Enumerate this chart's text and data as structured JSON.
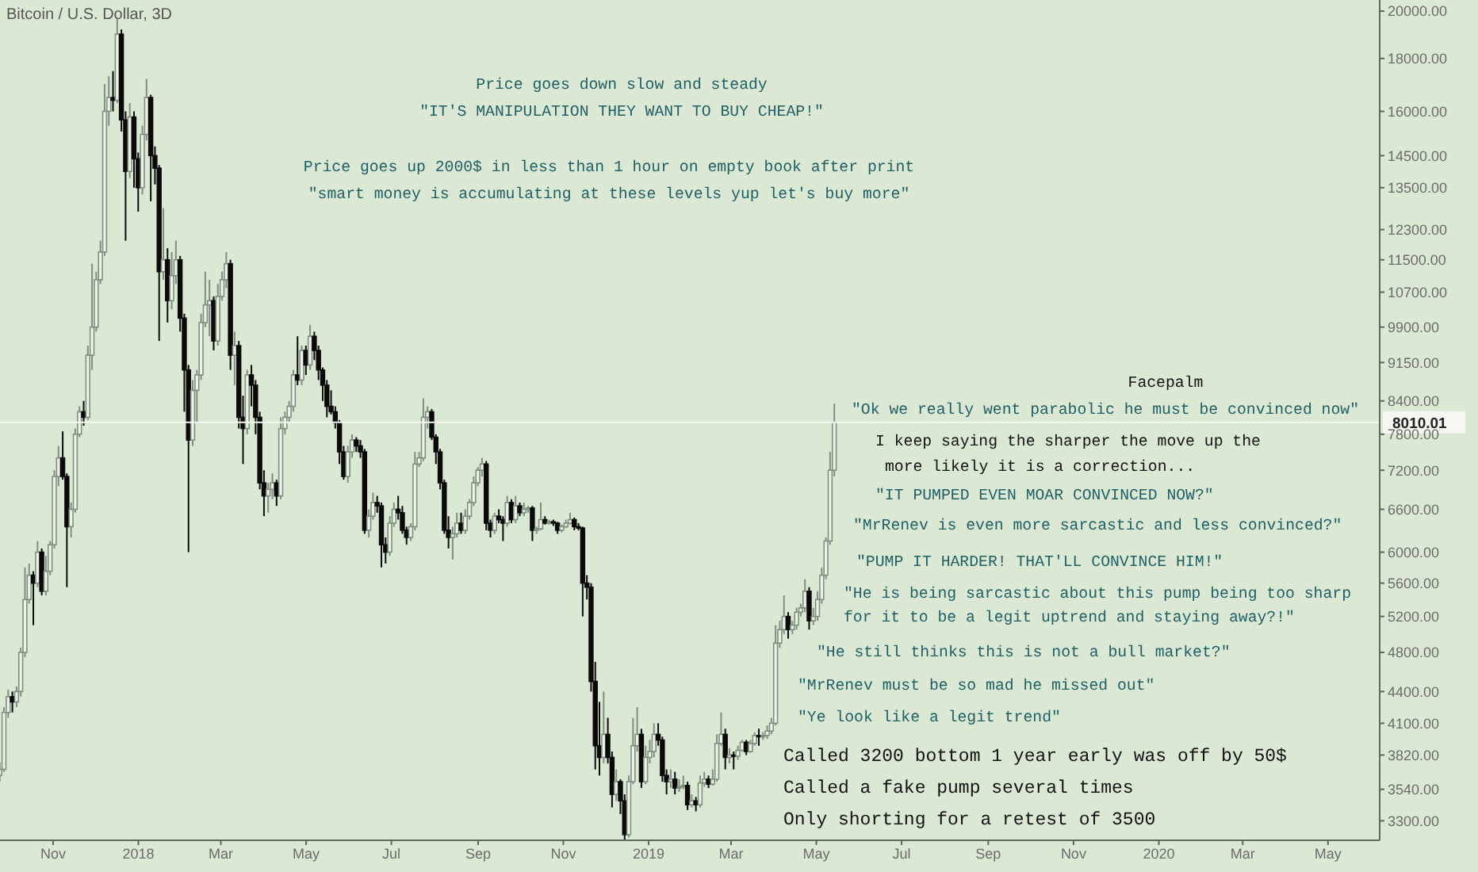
{
  "chart_data": {
    "type": "candlestick",
    "title": "Bitcoin / U.S. Dollar, 3D",
    "annotations": [
      "Price goes down slow and steady",
      "\"IT'S MANIPULATION THEY WANT TO BUY CHEAP!\"",
      "Price goes up 2000$ in less than 1 hour on empty book after print",
      "\"smart money is accumulating at these levels yup let's buy more\"",
      "Facepalm",
      "\"Ok we really went parabolic he must be convinced now\"",
      "I keep saying the sharper the move up the",
      "more likely it is a correction...",
      "\"IT PUMPED EVEN MOAR CONVINCED NOW?\"",
      "\"MrRenev is even more sarcastic and less convinced?\"",
      "\"PUMP IT HARDER! THAT'LL CONVINCE HIM!\"",
      "\"He is being sarcastic about this pump being too sharp",
      "for it to be a legit uptrend and staying away?!\"",
      "\"He still thinks this is not a bull market?\"",
      "\"MrRenev must be so mad he missed out\"",
      "\"Ye look like a legit trend\"",
      "Called 3200 bottom 1 year early was off by 50$",
      "Called a fake pump several times",
      "Only shorting for a retest of 3500"
    ],
    "x": [
      "2017-09-24",
      "2017-09-27",
      "2017-09-30",
      "2017-10-03",
      "2017-10-06",
      "2017-10-09",
      "2017-10-12",
      "2017-10-15",
      "2017-10-18",
      "2017-10-21",
      "2017-10-24",
      "2017-10-27",
      "2017-10-30",
      "2017-11-02",
      "2017-11-05",
      "2017-11-08",
      "2017-11-11",
      "2017-11-14",
      "2017-11-17",
      "2017-11-20",
      "2017-11-23",
      "2017-11-26",
      "2017-11-29",
      "2017-12-02",
      "2017-12-05",
      "2017-12-08",
      "2017-12-11",
      "2017-12-14",
      "2017-12-17",
      "2017-12-20",
      "2017-12-23",
      "2017-12-26",
      "2017-12-29",
      "2018-01-01",
      "2018-01-04",
      "2018-01-07",
      "2018-01-10",
      "2018-01-13",
      "2018-01-16",
      "2018-01-19",
      "2018-01-22",
      "2018-01-25",
      "2018-01-28",
      "2018-01-31",
      "2018-02-03",
      "2018-02-06",
      "2018-02-09",
      "2018-02-12",
      "2018-02-15",
      "2018-02-18",
      "2018-02-21",
      "2018-02-24",
      "2018-02-27",
      "2018-03-02",
      "2018-03-05",
      "2018-03-08",
      "2018-03-11",
      "2018-03-14",
      "2018-03-17",
      "2018-03-20",
      "2018-03-23",
      "2018-03-26",
      "2018-03-29",
      "2018-04-01",
      "2018-04-04",
      "2018-04-07",
      "2018-04-10",
      "2018-04-13",
      "2018-04-16",
      "2018-04-19",
      "2018-04-22",
      "2018-04-25",
      "2018-04-28",
      "2018-05-01",
      "2018-05-04",
      "2018-05-07",
      "2018-05-10",
      "2018-05-13",
      "2018-05-16",
      "2018-05-19",
      "2018-05-22",
      "2018-05-25",
      "2018-05-28",
      "2018-05-31",
      "2018-06-03",
      "2018-06-06",
      "2018-06-09",
      "2018-06-12",
      "2018-06-15",
      "2018-06-18",
      "2018-06-21",
      "2018-06-24",
      "2018-06-27",
      "2018-06-30",
      "2018-07-03",
      "2018-07-06",
      "2018-07-09",
      "2018-07-12",
      "2018-07-15",
      "2018-07-18",
      "2018-07-21",
      "2018-07-24",
      "2018-07-27",
      "2018-07-30",
      "2018-08-02",
      "2018-08-05",
      "2018-08-08",
      "2018-08-11",
      "2018-08-14",
      "2018-08-17",
      "2018-08-20",
      "2018-08-23",
      "2018-08-26",
      "2018-08-29",
      "2018-09-01",
      "2018-09-04",
      "2018-09-07",
      "2018-09-10",
      "2018-09-13",
      "2018-09-16",
      "2018-09-19",
      "2018-09-22",
      "2018-09-25",
      "2018-09-28",
      "2018-10-01",
      "2018-10-04",
      "2018-10-07",
      "2018-10-10",
      "2018-10-13",
      "2018-10-16",
      "2018-10-19",
      "2018-10-22",
      "2018-10-25",
      "2018-10-28",
      "2018-10-31",
      "2018-11-03",
      "2018-11-06",
      "2018-11-09",
      "2018-11-12",
      "2018-11-15",
      "2018-11-18",
      "2018-11-21",
      "2018-11-24",
      "2018-11-27",
      "2018-11-30",
      "2018-12-03",
      "2018-12-06",
      "2018-12-09",
      "2018-12-12",
      "2018-12-15",
      "2018-12-18",
      "2018-12-21",
      "2018-12-24",
      "2018-12-27",
      "2018-12-30",
      "2019-01-02",
      "2019-01-05",
      "2019-01-08",
      "2019-01-11",
      "2019-01-14",
      "2019-01-17",
      "2019-01-20",
      "2019-01-23",
      "2019-01-26",
      "2019-01-29",
      "2019-02-01",
      "2019-02-04",
      "2019-02-07",
      "2019-02-10",
      "2019-02-13",
      "2019-02-16",
      "2019-02-19",
      "2019-02-22",
      "2019-02-25",
      "2019-02-28",
      "2019-03-03",
      "2019-03-06",
      "2019-03-09",
      "2019-03-12",
      "2019-03-15",
      "2019-03-18",
      "2019-03-21",
      "2019-03-24",
      "2019-03-27",
      "2019-03-30",
      "2019-04-02",
      "2019-04-05",
      "2019-04-08",
      "2019-04-11",
      "2019-04-14",
      "2019-04-17",
      "2019-04-20",
      "2019-04-23",
      "2019-04-26",
      "2019-04-29",
      "2019-05-02",
      "2019-05-05",
      "2019-05-08",
      "2019-05-11",
      "2019-05-14"
    ],
    "ohlc": [
      [
        3650,
        3760,
        3600,
        3700
      ],
      [
        3700,
        4250,
        3680,
        4200
      ],
      [
        4200,
        4420,
        4150,
        4350
      ],
      [
        4350,
        4400,
        4200,
        4300
      ],
      [
        4300,
        4450,
        4250,
        4400
      ],
      [
        4400,
        4850,
        4350,
        4800
      ],
      [
        4800,
        5800,
        4750,
        5400
      ],
      [
        5400,
        5850,
        5350,
        5700
      ],
      [
        5700,
        5750,
        5100,
        5600
      ],
      [
        5600,
        6150,
        5550,
        6000
      ],
      [
        6000,
        6050,
        5450,
        5500
      ],
      [
        5500,
        5950,
        5450,
        5750
      ],
      [
        5750,
        6150,
        5700,
        6100
      ],
      [
        6100,
        7200,
        6050,
        7100
      ],
      [
        7100,
        7600,
        6950,
        7400
      ],
      [
        7400,
        7850,
        7050,
        7100
      ],
      [
        7100,
        7150,
        5550,
        6350
      ],
      [
        6350,
        6700,
        6200,
        6600
      ],
      [
        6600,
        7900,
        6550,
        7800
      ],
      [
        7800,
        8300,
        7750,
        8200
      ],
      [
        8200,
        8400,
        7950,
        8100
      ],
      [
        8100,
        9500,
        8050,
        9300
      ],
      [
        9300,
        11400,
        9000,
        9900
      ],
      [
        9900,
        11200,
        9800,
        11000
      ],
      [
        11000,
        12000,
        10900,
        11700
      ],
      [
        11700,
        17000,
        11600,
        16000
      ],
      [
        16000,
        17300,
        15500,
        16500
      ],
      [
        16500,
        17500,
        16000,
        16400
      ],
      [
        16400,
        19700,
        16300,
        19000
      ],
      [
        19000,
        19200,
        15300,
        15700
      ],
      [
        15700,
        16000,
        12000,
        14000
      ],
      [
        14000,
        16300,
        13800,
        15800
      ],
      [
        15800,
        16000,
        13500,
        14400
      ],
      [
        14400,
        14600,
        12800,
        13500
      ],
      [
        13500,
        15500,
        13300,
        15200
      ],
      [
        15200,
        17200,
        15000,
        16500
      ],
      [
        16500,
        16600,
        13100,
        14500
      ],
      [
        14500,
        14800,
        13600,
        14100
      ],
      [
        14100,
        14200,
        9600,
        11200
      ],
      [
        11200,
        12900,
        11000,
        11500
      ],
      [
        11500,
        11800,
        10000,
        10500
      ],
      [
        10500,
        11700,
        10300,
        11100
      ],
      [
        11100,
        12000,
        10900,
        11500
      ],
      [
        11500,
        11600,
        9800,
        10100
      ],
      [
        10100,
        10200,
        8200,
        9000
      ],
      [
        9000,
        9100,
        6000,
        7700
      ],
      [
        7700,
        8800,
        7600,
        8600
      ],
      [
        8600,
        9000,
        8000,
        8900
      ],
      [
        8900,
        10200,
        8800,
        10000
      ],
      [
        10000,
        11200,
        9900,
        10400
      ],
      [
        10400,
        11000,
        9700,
        10500
      ],
      [
        10500,
        10600,
        9400,
        9600
      ],
      [
        9600,
        10900,
        9500,
        10600
      ],
      [
        10600,
        11200,
        10500,
        11000
      ],
      [
        11000,
        11700,
        10800,
        11400
      ],
      [
        11400,
        11500,
        9000,
        9300
      ],
      [
        9300,
        9800,
        8700,
        9500
      ],
      [
        9500,
        9600,
        7900,
        8100
      ],
      [
        8100,
        8500,
        7300,
        7900
      ],
      [
        7900,
        9000,
        7800,
        8900
      ],
      [
        8900,
        9100,
        8300,
        8700
      ],
      [
        8700,
        8800,
        7800,
        8100
      ],
      [
        8100,
        8200,
        6900,
        7000
      ],
      [
        7000,
        7200,
        6500,
        6800
      ],
      [
        6800,
        7000,
        6550,
        6900
      ],
      [
        6900,
        7150,
        6750,
        7000
      ],
      [
        7000,
        7050,
        6650,
        6800
      ],
      [
        6800,
        8100,
        6750,
        7900
      ],
      [
        7900,
        8200,
        7800,
        8100
      ],
      [
        8100,
        8400,
        8000,
        8300
      ],
      [
        8300,
        9000,
        8200,
        8900
      ],
      [
        8900,
        9700,
        8700,
        8800
      ],
      [
        8800,
        9500,
        8700,
        9400
      ],
      [
        9400,
        9500,
        8900,
        9100
      ],
      [
        9100,
        9950,
        9000,
        9700
      ],
      [
        9700,
        9800,
        9200,
        9400
      ],
      [
        9400,
        9500,
        8800,
        9000
      ],
      [
        9000,
        9050,
        8400,
        8700
      ],
      [
        8700,
        8800,
        8100,
        8300
      ],
      [
        8300,
        8600,
        8150,
        8200
      ],
      [
        8200,
        8300,
        7900,
        8000
      ],
      [
        8000,
        8050,
        7300,
        7500
      ],
      [
        7500,
        7600,
        7050,
        7100
      ],
      [
        7100,
        7600,
        7000,
        7500
      ],
      [
        7500,
        7800,
        7400,
        7700
      ],
      [
        7700,
        7750,
        7500,
        7600
      ],
      [
        7600,
        7700,
        7400,
        7500
      ],
      [
        7500,
        7550,
        6250,
        6300
      ],
      [
        6300,
        6600,
        6200,
        6500
      ],
      [
        6500,
        6850,
        6450,
        6700
      ],
      [
        6700,
        6800,
        6550,
        6650
      ],
      [
        6650,
        6700,
        5800,
        6100
      ],
      [
        6100,
        6200,
        5850,
        6000
      ],
      [
        6000,
        6500,
        5950,
        6400
      ],
      [
        6400,
        6700,
        6350,
        6600
      ],
      [
        6600,
        6800,
        6450,
        6550
      ],
      [
        6550,
        6650,
        6250,
        6300
      ],
      [
        6300,
        6350,
        6100,
        6200
      ],
      [
        6200,
        6400,
        6150,
        6350
      ],
      [
        6350,
        7500,
        6300,
        7300
      ],
      [
        7300,
        7500,
        7250,
        7400
      ],
      [
        7400,
        8450,
        7350,
        8100
      ],
      [
        8100,
        8300,
        7900,
        8200
      ],
      [
        8200,
        8250,
        7700,
        7750
      ],
      [
        7750,
        7800,
        7300,
        7500
      ],
      [
        7500,
        7550,
        6900,
        7000
      ],
      [
        7000,
        7050,
        6250,
        6300
      ],
      [
        6300,
        6500,
        6050,
        6200
      ],
      [
        6200,
        6350,
        5900,
        6250
      ],
      [
        6250,
        6550,
        6200,
        6400
      ],
      [
        6400,
        6550,
        6250,
        6300
      ],
      [
        6300,
        6600,
        6250,
        6500
      ],
      [
        6500,
        6750,
        6450,
        6700
      ],
      [
        6700,
        7100,
        6650,
        7000
      ],
      [
        7000,
        7250,
        6950,
        7200
      ],
      [
        7200,
        7400,
        7100,
        7300
      ],
      [
        7300,
        7350,
        6300,
        6400
      ],
      [
        6400,
        6450,
        6200,
        6300
      ],
      [
        6300,
        6550,
        6250,
        6500
      ],
      [
        6500,
        6600,
        6400,
        6450
      ],
      [
        6450,
        6500,
        6150,
        6400
      ],
      [
        6400,
        6800,
        6350,
        6700
      ],
      [
        6700,
        6750,
        6400,
        6450
      ],
      [
        6450,
        6800,
        6400,
        6650
      ],
      [
        6650,
        6700,
        6500,
        6550
      ],
      [
        6550,
        6700,
        6500,
        6600
      ],
      [
        6600,
        6650,
        6550,
        6620
      ],
      [
        6620,
        6650,
        6150,
        6300
      ],
      [
        6300,
        6350,
        6250,
        6320
      ],
      [
        6320,
        6700,
        6300,
        6450
      ],
      [
        6450,
        6500,
        6380,
        6400
      ],
      [
        6400,
        6450,
        6380,
        6420
      ],
      [
        6420,
        6450,
        6360,
        6400
      ],
      [
        6400,
        6420,
        6250,
        6300
      ],
      [
        6300,
        6380,
        6270,
        6350
      ],
      [
        6350,
        6450,
        6330,
        6400
      ],
      [
        6400,
        6550,
        6380,
        6450
      ],
      [
        6450,
        6480,
        6300,
        6350
      ],
      [
        6350,
        6400,
        6300,
        6330
      ],
      [
        6330,
        6350,
        5200,
        5600
      ],
      [
        5600,
        5700,
        5400,
        5550
      ],
      [
        5550,
        5600,
        4400,
        4500
      ],
      [
        4500,
        4700,
        3700,
        3900
      ],
      [
        3900,
        4300,
        3650,
        3800
      ],
      [
        3800,
        4400,
        3750,
        4000
      ],
      [
        4000,
        4150,
        3750,
        3800
      ],
      [
        3800,
        3850,
        3400,
        3500
      ],
      [
        3500,
        3700,
        3450,
        3600
      ],
      [
        3600,
        3620,
        3350,
        3450
      ],
      [
        3450,
        3500,
        3150,
        3200
      ],
      [
        3200,
        3650,
        3180,
        3600
      ],
      [
        3600,
        4150,
        3580,
        3900
      ],
      [
        3900,
        4250,
        3850,
        4000
      ],
      [
        4000,
        4050,
        3550,
        3600
      ],
      [
        3600,
        3900,
        3580,
        3800
      ],
      [
        3800,
        3950,
        3750,
        3850
      ],
      [
        3850,
        4100,
        3800,
        4000
      ],
      [
        4000,
        4100,
        3900,
        3950
      ],
      [
        3950,
        3980,
        3600,
        3650
      ],
      [
        3650,
        3700,
        3500,
        3600
      ],
      [
        3600,
        3700,
        3550,
        3620
      ],
      [
        3620,
        3680,
        3500,
        3550
      ],
      [
        3550,
        3620,
        3520,
        3560
      ],
      [
        3560,
        3650,
        3540,
        3570
      ],
      [
        3570,
        3600,
        3380,
        3420
      ],
      [
        3420,
        3500,
        3400,
        3450
      ],
      [
        3450,
        3480,
        3370,
        3420
      ],
      [
        3420,
        3650,
        3400,
        3590
      ],
      [
        3590,
        3680,
        3560,
        3620
      ],
      [
        3620,
        3650,
        3550,
        3580
      ],
      [
        3580,
        3700,
        3570,
        3620
      ],
      [
        3620,
        4000,
        3600,
        3920
      ],
      [
        3920,
        4200,
        3900,
        4000
      ],
      [
        4000,
        4050,
        3700,
        3800
      ],
      [
        3800,
        3880,
        3750,
        3820
      ],
      [
        3820,
        3850,
        3700,
        3810
      ],
      [
        3810,
        3900,
        3780,
        3860
      ],
      [
        3860,
        3950,
        3850,
        3930
      ],
      [
        3930,
        3950,
        3820,
        3850
      ],
      [
        3850,
        3950,
        3840,
        3920
      ],
      [
        3920,
        4020,
        3900,
        3990
      ],
      [
        3990,
        4050,
        3900,
        3980
      ],
      [
        3980,
        4020,
        3950,
        3990
      ],
      [
        3990,
        4080,
        3960,
        4030
      ],
      [
        4030,
        4150,
        4000,
        4100
      ],
      [
        4100,
        5100,
        4080,
        4900
      ],
      [
        4900,
        5150,
        4850,
        5050
      ],
      [
        5050,
        5450,
        5000,
        5200
      ],
      [
        5200,
        5250,
        4950,
        5050
      ],
      [
        5050,
        5150,
        5000,
        5100
      ],
      [
        5100,
        5300,
        5050,
        5250
      ],
      [
        5250,
        5350,
        5200,
        5300
      ],
      [
        5300,
        5650,
        5250,
        5500
      ],
      [
        5500,
        5550,
        5050,
        5150
      ],
      [
        5150,
        5300,
        5100,
        5200
      ],
      [
        5200,
        5500,
        5150,
        5400
      ],
      [
        5400,
        5800,
        5350,
        5700
      ],
      [
        5700,
        6200,
        5650,
        6150
      ],
      [
        6150,
        7500,
        6100,
        7200
      ],
      [
        7200,
        8350,
        7100,
        8010.01
      ]
    ],
    "log": true,
    "ylim": [
      3160,
      20500
    ],
    "yticks": [
      {
        "value": 3300,
        "label": "3300.00"
      },
      {
        "value": 3540,
        "label": "3540.00"
      },
      {
        "value": 3820,
        "label": "3820.00"
      },
      {
        "value": 4100,
        "label": "4100.00"
      },
      {
        "value": 4400,
        "label": "4400.00"
      },
      {
        "value": 4800,
        "label": "4800.00"
      },
      {
        "value": 5200,
        "label": "5200.00"
      },
      {
        "value": 5600,
        "label": "5600.00"
      },
      {
        "value": 6000,
        "label": "6000.00"
      },
      {
        "value": 6600,
        "label": "6600.00"
      },
      {
        "value": 7200,
        "label": "7200.00"
      },
      {
        "value": 7800,
        "label": "7800.00"
      },
      {
        "value": 8400,
        "label": "8400.00"
      },
      {
        "value": 9150,
        "label": "9150.00"
      },
      {
        "value": 9900,
        "label": "9900.00"
      },
      {
        "value": 10700,
        "label": "10700.00"
      },
      {
        "value": 11500,
        "label": "11500.00"
      },
      {
        "value": 12300,
        "label": "12300.00"
      },
      {
        "value": 13500,
        "label": "13500.00"
      },
      {
        "value": 14500,
        "label": "14500.00"
      },
      {
        "value": 16000,
        "label": "16000.00"
      },
      {
        "value": 18000,
        "label": "18000.00"
      },
      {
        "value": 20000,
        "label": "20000.00"
      }
    ],
    "xlim": [
      "2017-09-24",
      "2020-06-07"
    ],
    "xticks": [
      {
        "value": "2017-11-01",
        "label": "Nov"
      },
      {
        "value": "2018-01-01",
        "label": "2018"
      },
      {
        "value": "2018-03-01",
        "label": "Mar"
      },
      {
        "value": "2018-05-01",
        "label": "May"
      },
      {
        "value": "2018-07-01",
        "label": "Jul"
      },
      {
        "value": "2018-09-01",
        "label": "Sep"
      },
      {
        "value": "2018-11-01",
        "label": "Nov"
      },
      {
        "value": "2019-01-01",
        "label": "2019"
      },
      {
        "value": "2019-03-01",
        "label": "Mar"
      },
      {
        "value": "2019-05-01",
        "label": "May"
      },
      {
        "value": "2019-07-01",
        "label": "Jul"
      },
      {
        "value": "2019-09-01",
        "label": "Sep"
      },
      {
        "value": "2019-11-01",
        "label": "Nov"
      },
      {
        "value": "2020-01-01",
        "label": "2020"
      },
      {
        "value": "2020-03-01",
        "label": "Mar"
      },
      {
        "value": "2020-05-01",
        "label": "May"
      }
    ],
    "ref_lines": [
      {
        "axis": "y",
        "value": 8010.01,
        "label": "8010.01",
        "color": "#f4f8f2"
      }
    ]
  }
}
